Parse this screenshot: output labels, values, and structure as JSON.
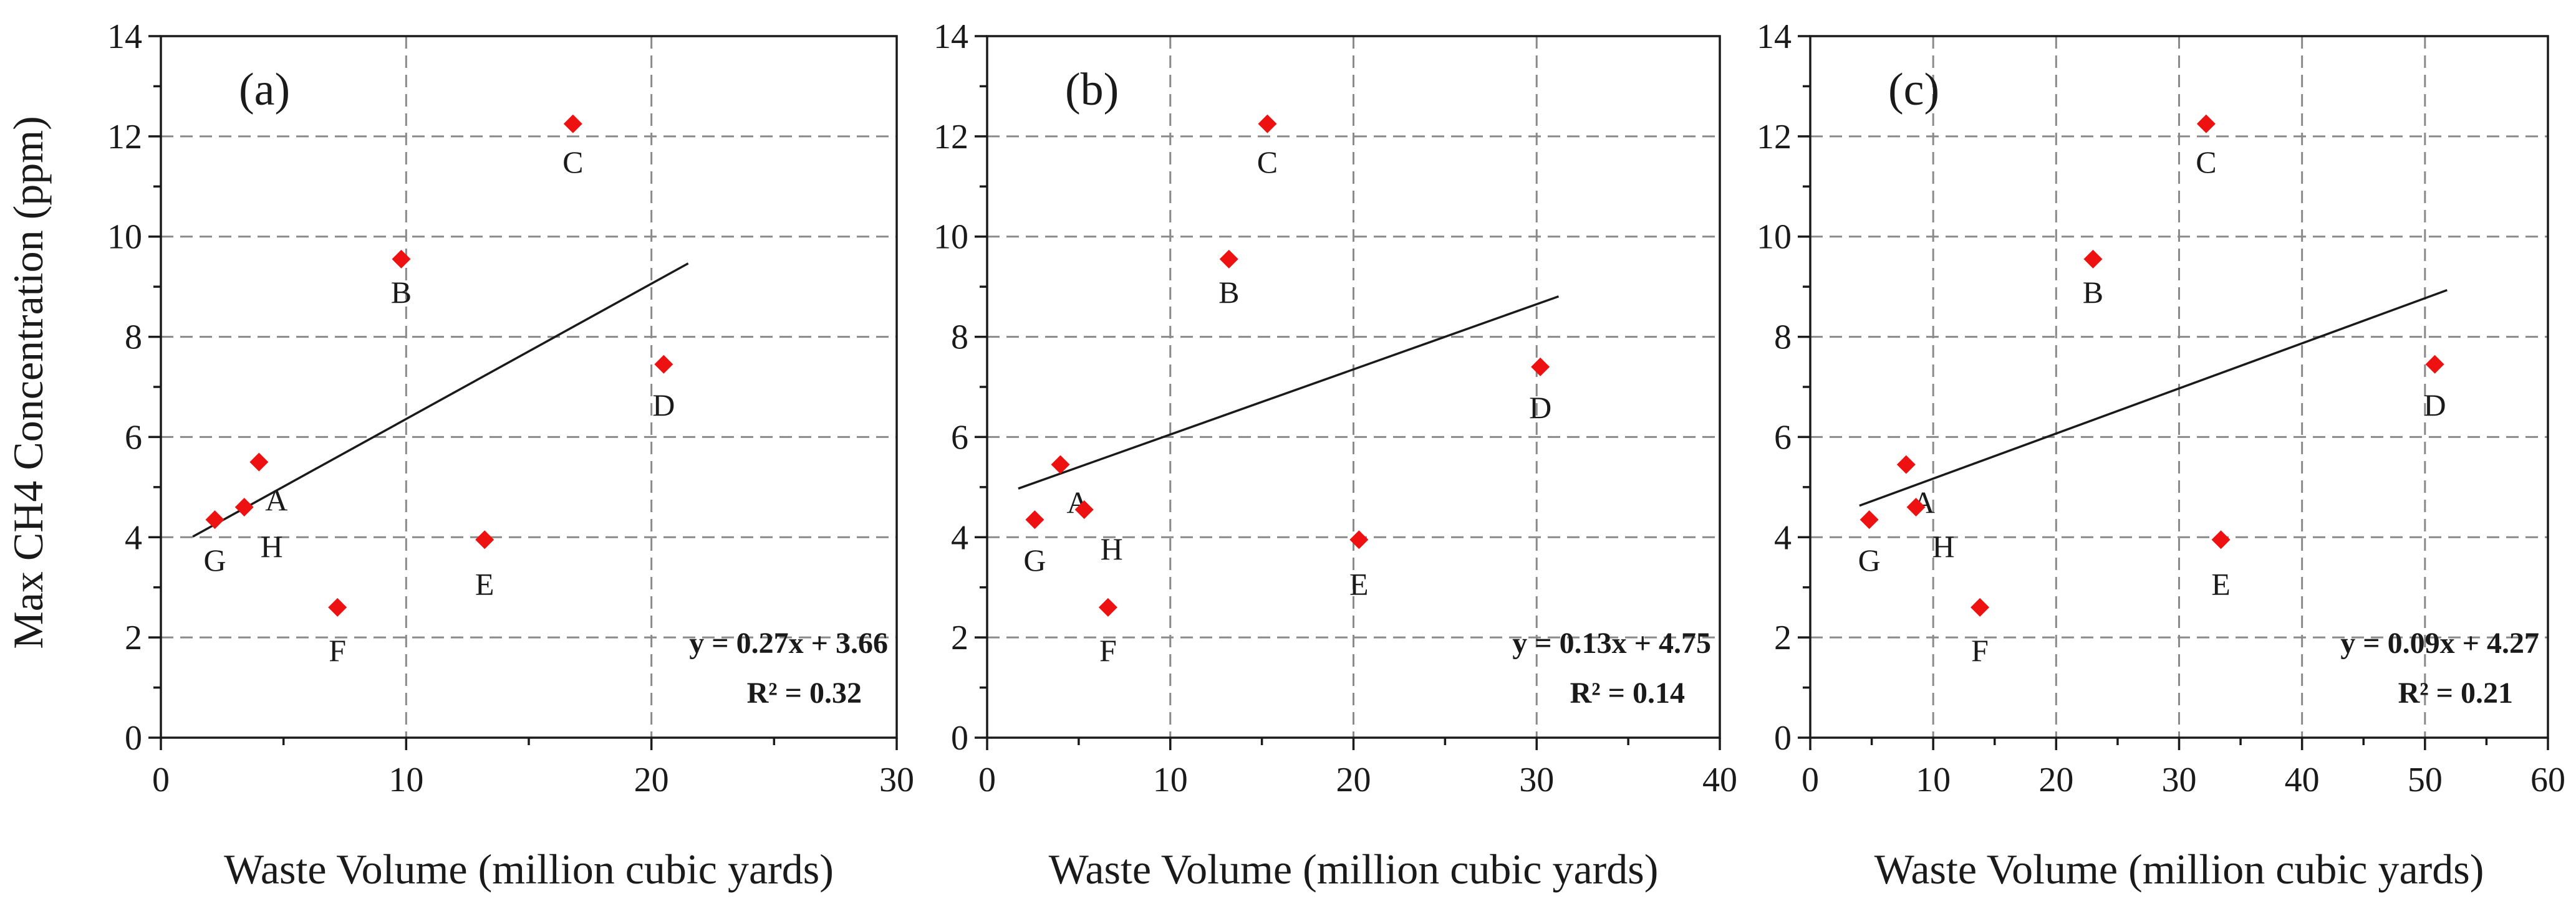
{
  "figure": {
    "ylabel": "Max CH4 Concentration (ppm)",
    "colors": {
      "marker": "#ee1111",
      "trendline": "#1a1a1a",
      "grid": "#8a8a8a"
    }
  },
  "chart_data": [
    {
      "type": "scatter",
      "panel_label": "(a)",
      "xlabel": "Waste Volume (million cubic yards)",
      "ylabel": "Max CH4 Concentration (ppm)",
      "xlim": [
        0,
        30
      ],
      "ylim": [
        0,
        14
      ],
      "xticks": [
        0,
        10,
        20,
        30
      ],
      "yticks": [
        0,
        2,
        4,
        6,
        8,
        10,
        12,
        14
      ],
      "grid": true,
      "points": [
        {
          "label": "A",
          "x": 4.0,
          "y": 5.5
        },
        {
          "label": "B",
          "x": 9.8,
          "y": 9.55
        },
        {
          "label": "C",
          "x": 16.8,
          "y": 12.25
        },
        {
          "label": "D",
          "x": 20.5,
          "y": 7.45
        },
        {
          "label": "E",
          "x": 13.2,
          "y": 3.95
        },
        {
          "label": "F",
          "x": 7.2,
          "y": 2.6
        },
        {
          "label": "G",
          "x": 2.2,
          "y": 4.35
        },
        {
          "label": "H",
          "x": 3.4,
          "y": 4.6
        }
      ],
      "trendline": {
        "slope": 0.27,
        "intercept": 3.66,
        "x_range": [
          1.3,
          21.5
        ]
      },
      "equation": "y = 0.27x + 3.66",
      "r_squared": "R² = 0.32"
    },
    {
      "type": "scatter",
      "panel_label": "(b)",
      "xlabel": "Waste Volume (million cubic yards)",
      "ylabel": "",
      "xlim": [
        0,
        40
      ],
      "ylim": [
        0,
        14
      ],
      "xticks": [
        0,
        10,
        20,
        30,
        40
      ],
      "yticks": [
        0,
        2,
        4,
        6,
        8,
        10,
        12,
        14
      ],
      "grid": true,
      "points": [
        {
          "label": "A",
          "x": 4.0,
          "y": 5.45
        },
        {
          "label": "B",
          "x": 13.2,
          "y": 9.55
        },
        {
          "label": "C",
          "x": 15.3,
          "y": 12.25
        },
        {
          "label": "D",
          "x": 30.2,
          "y": 7.4
        },
        {
          "label": "E",
          "x": 20.3,
          "y": 3.95
        },
        {
          "label": "F",
          "x": 6.6,
          "y": 2.6
        },
        {
          "label": "G",
          "x": 2.6,
          "y": 4.35
        },
        {
          "label": "H",
          "x": 5.3,
          "y": 4.55
        }
      ],
      "trendline": {
        "slope": 0.13,
        "intercept": 4.75,
        "x_range": [
          1.7,
          31.2
        ]
      },
      "equation": "y = 0.13x + 4.75",
      "r_squared": "R² = 0.14"
    },
    {
      "type": "scatter",
      "panel_label": "(c)",
      "xlabel": "Waste Volume (million cubic yards)",
      "ylabel": "",
      "xlim": [
        0,
        60
      ],
      "ylim": [
        0,
        14
      ],
      "xticks": [
        0,
        10,
        20,
        30,
        40,
        50,
        60
      ],
      "yticks": [
        0,
        2,
        4,
        6,
        8,
        10,
        12,
        14
      ],
      "grid": true,
      "points": [
        {
          "label": "A",
          "x": 7.8,
          "y": 5.45
        },
        {
          "label": "B",
          "x": 23.0,
          "y": 9.55
        },
        {
          "label": "C",
          "x": 32.2,
          "y": 12.25
        },
        {
          "label": "D",
          "x": 50.8,
          "y": 7.45
        },
        {
          "label": "E",
          "x": 33.4,
          "y": 3.95
        },
        {
          "label": "F",
          "x": 13.8,
          "y": 2.6
        },
        {
          "label": "G",
          "x": 4.8,
          "y": 4.35
        },
        {
          "label": "H",
          "x": 8.6,
          "y": 4.6
        }
      ],
      "trendline": {
        "slope": 0.09,
        "intercept": 4.27,
        "x_range": [
          4.0,
          51.8
        ]
      },
      "equation": "y = 0.09x + 4.27",
      "r_squared": "R² = 0.21"
    }
  ]
}
